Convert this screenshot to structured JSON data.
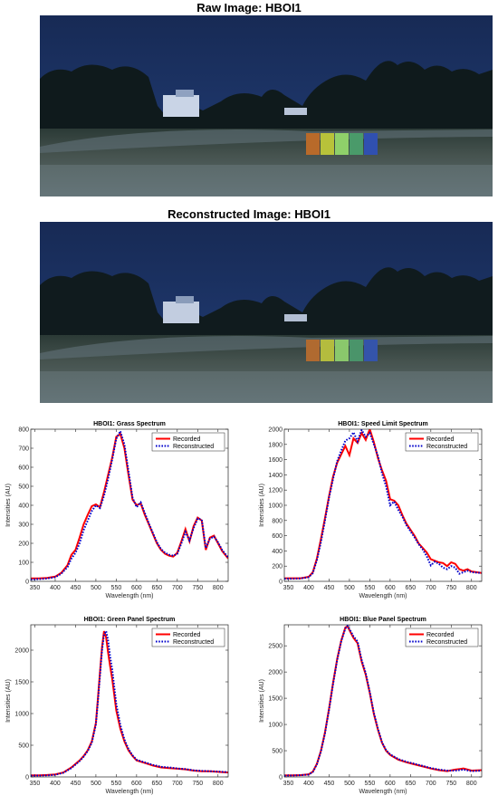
{
  "images": [
    {
      "title": "Raw Image: HBOI1"
    },
    {
      "title": "Reconstructed Image: HBOI1"
    }
  ],
  "chart_data": [
    {
      "type": "line",
      "title": "HBOI1: Grass Spectrum",
      "xlabel": "Wavelength (nm)",
      "ylabel": "Intensities (AU)",
      "xlim": [
        340,
        825
      ],
      "ylim": [
        0,
        800
      ],
      "xticks": [
        350,
        400,
        450,
        500,
        550,
        600,
        650,
        700,
        750,
        800
      ],
      "yticks": [
        0,
        100,
        200,
        300,
        400,
        500,
        600,
        700,
        800
      ],
      "legend": "top-right",
      "series": [
        {
          "name": "Recorded",
          "color": "#ff0000",
          "style": "solid",
          "x": [
            340,
            360,
            380,
            400,
            415,
            430,
            440,
            450,
            460,
            470,
            480,
            490,
            500,
            510,
            520,
            530,
            540,
            550,
            560,
            570,
            580,
            590,
            600,
            610,
            620,
            630,
            640,
            650,
            660,
            670,
            680,
            690,
            700,
            710,
            720,
            730,
            740,
            750,
            760,
            770,
            780,
            790,
            800,
            810,
            825
          ],
          "y": [
            15,
            15,
            18,
            25,
            45,
            85,
            140,
            165,
            230,
            300,
            350,
            395,
            405,
            390,
            470,
            560,
            650,
            760,
            775,
            700,
            560,
            430,
            400,
            410,
            350,
            300,
            250,
            200,
            165,
            145,
            135,
            130,
            150,
            210,
            275,
            210,
            290,
            335,
            320,
            165,
            230,
            240,
            200,
            160,
            120
          ]
        },
        {
          "name": "Reconstructed",
          "color": "#0000cc",
          "style": "dotted",
          "x": [
            340,
            360,
            380,
            400,
            415,
            430,
            440,
            450,
            460,
            470,
            480,
            490,
            500,
            510,
            520,
            530,
            540,
            550,
            560,
            570,
            580,
            590,
            600,
            610,
            620,
            630,
            640,
            650,
            660,
            670,
            680,
            690,
            700,
            710,
            720,
            730,
            740,
            750,
            760,
            770,
            780,
            790,
            800,
            810,
            825
          ],
          "y": [
            10,
            12,
            15,
            22,
            40,
            75,
            120,
            150,
            200,
            270,
            320,
            370,
            400,
            385,
            450,
            540,
            640,
            750,
            790,
            720,
            580,
            440,
            390,
            415,
            360,
            305,
            255,
            205,
            170,
            150,
            140,
            135,
            145,
            200,
            260,
            215,
            280,
            330,
            325,
            175,
            225,
            235,
            205,
            165,
            125
          ]
        }
      ]
    },
    {
      "type": "line",
      "title": "HBOI1: Speed Limit Spectrum",
      "xlabel": "Wavelength (nm)",
      "ylabel": "Intensities (AU)",
      "xlim": [
        340,
        825
      ],
      "ylim": [
        0,
        2000
      ],
      "xticks": [
        350,
        400,
        450,
        500,
        550,
        600,
        650,
        700,
        750,
        800
      ],
      "yticks": [
        0,
        200,
        400,
        600,
        800,
        1000,
        1200,
        1400,
        1600,
        1800,
        2000
      ],
      "legend": "top-right",
      "series": [
        {
          "name": "Recorded",
          "color": "#ff0000",
          "style": "solid",
          "x": [
            340,
            360,
            380,
            400,
            410,
            420,
            430,
            440,
            450,
            460,
            470,
            480,
            490,
            500,
            510,
            520,
            530,
            540,
            550,
            560,
            570,
            580,
            590,
            600,
            610,
            620,
            630,
            640,
            650,
            660,
            670,
            680,
            690,
            700,
            710,
            720,
            730,
            740,
            750,
            760,
            770,
            780,
            790,
            800,
            825
          ],
          "y": [
            40,
            40,
            40,
            60,
            120,
            300,
            560,
            830,
            1120,
            1380,
            1560,
            1670,
            1780,
            1660,
            1880,
            1820,
            1950,
            1860,
            2000,
            1830,
            1620,
            1460,
            1320,
            1080,
            1060,
            1000,
            870,
            760,
            680,
            600,
            500,
            440,
            380,
            290,
            270,
            250,
            240,
            200,
            250,
            230,
            160,
            140,
            160,
            130,
            110
          ]
        },
        {
          "name": "Reconstructed",
          "color": "#0000cc",
          "style": "dotted",
          "x": [
            340,
            360,
            380,
            400,
            410,
            420,
            430,
            440,
            450,
            460,
            470,
            480,
            490,
            500,
            510,
            520,
            530,
            540,
            550,
            560,
            570,
            580,
            590,
            600,
            610,
            620,
            630,
            640,
            650,
            660,
            670,
            680,
            690,
            700,
            710,
            720,
            730,
            740,
            750,
            760,
            770,
            780,
            790,
            800,
            825
          ],
          "y": [
            35,
            35,
            38,
            55,
            110,
            280,
            520,
            800,
            1100,
            1350,
            1580,
            1720,
            1850,
            1880,
            1960,
            1840,
            1990,
            1900,
            1950,
            1800,
            1650,
            1420,
            1250,
            1000,
            1050,
            940,
            850,
            740,
            660,
            580,
            490,
            420,
            330,
            210,
            260,
            230,
            180,
            160,
            200,
            180,
            100,
            120,
            140,
            120,
            110
          ]
        }
      ]
    },
    {
      "type": "line",
      "title": "HBOI1: Green Panel Spectrum",
      "xlabel": "Wavelength (nm)",
      "ylabel": "Intensities (AU)",
      "xlim": [
        340,
        825
      ],
      "ylim": [
        0,
        2400
      ],
      "xticks": [
        350,
        400,
        450,
        500,
        550,
        600,
        650,
        700,
        750,
        800
      ],
      "yticks": [
        0,
        500,
        1000,
        1500,
        2000
      ],
      "legend": "top-right",
      "series": [
        {
          "name": "Recorded",
          "color": "#ff0000",
          "style": "solid",
          "x": [
            340,
            360,
            380,
            400,
            420,
            440,
            460,
            470,
            480,
            490,
            500,
            505,
            510,
            515,
            520,
            525,
            530,
            535,
            540,
            550,
            560,
            570,
            580,
            590,
            600,
            620,
            640,
            660,
            680,
            700,
            720,
            740,
            760,
            780,
            800,
            825
          ],
          "y": [
            25,
            25,
            30,
            40,
            70,
            150,
            260,
            330,
            420,
            560,
            850,
            1250,
            1650,
            2050,
            2300,
            2200,
            1960,
            1750,
            1550,
            1050,
            760,
            560,
            420,
            330,
            260,
            220,
            180,
            150,
            140,
            130,
            120,
            100,
            90,
            90,
            80,
            70
          ]
        },
        {
          "name": "Reconstructed",
          "color": "#0000cc",
          "style": "dotted",
          "x": [
            340,
            360,
            380,
            400,
            420,
            440,
            460,
            470,
            480,
            490,
            500,
            505,
            510,
            515,
            520,
            525,
            530,
            535,
            540,
            550,
            560,
            570,
            580,
            590,
            600,
            620,
            640,
            660,
            680,
            700,
            720,
            740,
            760,
            780,
            800,
            825
          ],
          "y": [
            20,
            22,
            25,
            35,
            65,
            140,
            250,
            320,
            410,
            540,
            830,
            1200,
            1600,
            2000,
            2250,
            2300,
            2150,
            1900,
            1700,
            1150,
            820,
            590,
            440,
            340,
            270,
            230,
            190,
            160,
            150,
            135,
            125,
            105,
            95,
            90,
            85,
            75
          ]
        }
      ]
    },
    {
      "type": "line",
      "title": "HBOI1: Blue Panel Spectrum",
      "xlabel": "Wavelength (nm)",
      "ylabel": "Intensities (AU)",
      "xlim": [
        340,
        825
      ],
      "ylim": [
        0,
        2900
      ],
      "xticks": [
        350,
        400,
        450,
        500,
        550,
        600,
        650,
        700,
        750,
        800
      ],
      "yticks": [
        0,
        500,
        1000,
        1500,
        2000,
        2500
      ],
      "legend": "top-right",
      "series": [
        {
          "name": "Recorded",
          "color": "#ff0000",
          "style": "solid",
          "x": [
            340,
            360,
            380,
            400,
            410,
            420,
            430,
            440,
            450,
            460,
            470,
            480,
            490,
            495,
            500,
            510,
            520,
            530,
            540,
            550,
            560,
            570,
            580,
            590,
            600,
            620,
            640,
            660,
            680,
            700,
            720,
            740,
            760,
            780,
            800,
            825
          ],
          "y": [
            30,
            30,
            35,
            50,
            100,
            250,
            500,
            850,
            1300,
            1800,
            2250,
            2600,
            2850,
            2870,
            2800,
            2650,
            2550,
            2200,
            1950,
            1600,
            1200,
            900,
            650,
            500,
            420,
            330,
            280,
            240,
            200,
            160,
            130,
            110,
            140,
            160,
            120,
            130
          ]
        },
        {
          "name": "Reconstructed",
          "color": "#0000cc",
          "style": "dotted",
          "x": [
            340,
            360,
            380,
            400,
            410,
            420,
            430,
            440,
            450,
            460,
            470,
            480,
            490,
            495,
            500,
            510,
            520,
            530,
            540,
            550,
            560,
            570,
            580,
            590,
            600,
            620,
            640,
            660,
            680,
            700,
            720,
            740,
            760,
            780,
            800,
            825
          ],
          "y": [
            25,
            28,
            32,
            45,
            95,
            240,
            490,
            830,
            1280,
            1780,
            2230,
            2590,
            2830,
            2880,
            2820,
            2680,
            2580,
            2230,
            1980,
            1620,
            1220,
            920,
            660,
            510,
            430,
            340,
            290,
            250,
            210,
            170,
            140,
            120,
            120,
            140,
            110,
            120
          ]
        }
      ]
    }
  ]
}
